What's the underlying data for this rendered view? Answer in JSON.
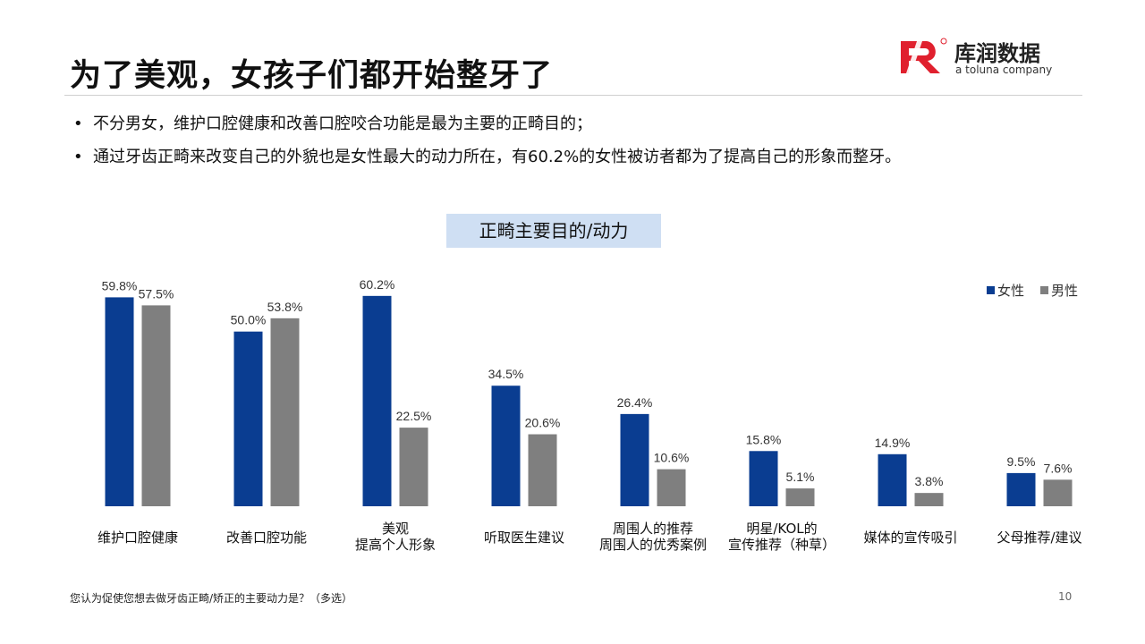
{
  "header": {
    "title": "为了美观，女孩子们都开始整牙了",
    "logo_name": "库润数据",
    "logo_tagline": "a toluna company"
  },
  "bullets": [
    "不分男女，维护口腔健康和改善口腔咬合功能是最为主要的正畸目的；",
    "通过牙齿正畸来改变自己的外貌也是女性最大的动力所在，有60.2%的女性被访者都为了提高自己的形象而整牙。"
  ],
  "footer": {
    "note": "您认为促使您想去做牙齿正畸/矫正的主要动力是？（多选）",
    "page": "10"
  },
  "colors": {
    "female": "#0a3d91",
    "male": "#7f7f7f",
    "logo_red": "#e0202e"
  },
  "chart_data": {
    "type": "bar",
    "title": "正畸主要目的/动力",
    "categories": [
      [
        "维护口腔健康"
      ],
      [
        "改善口腔功能"
      ],
      [
        "美观",
        "提高个人形象"
      ],
      [
        "听取医生建议"
      ],
      [
        "周围人的推荐",
        "周围人的优秀案例"
      ],
      [
        "明星/KOL的",
        "宣传推荐（种草）"
      ],
      [
        "媒体的宣传吸引"
      ],
      [
        "父母推荐/建议"
      ]
    ],
    "series": [
      {
        "name": "女性",
        "values": [
          59.8,
          50.0,
          60.2,
          34.5,
          26.4,
          15.8,
          14.9,
          9.5
        ]
      },
      {
        "name": "男性",
        "values": [
          57.5,
          53.8,
          22.5,
          20.6,
          10.6,
          5.1,
          3.8,
          7.6
        ]
      }
    ],
    "value_suffix": "%",
    "legend_position": "top-right",
    "ylim": [
      0,
      64
    ],
    "grid": false
  }
}
